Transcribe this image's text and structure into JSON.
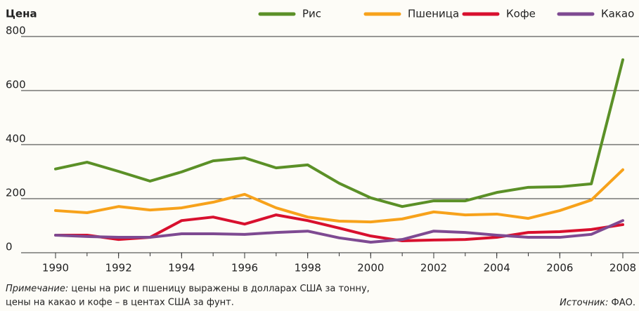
{
  "chart_data": {
    "type": "line",
    "y_label": "Цена",
    "x": [
      1990,
      1991,
      1992,
      1993,
      1994,
      1995,
      1996,
      1997,
      1998,
      1999,
      2000,
      2001,
      2002,
      2003,
      2004,
      2005,
      2006,
      2007,
      2008
    ],
    "series": [
      {
        "name": "Рис",
        "color": "#5b9027",
        "values": [
          310,
          335,
          301,
          265,
          299,
          340,
          351,
          314,
          325,
          257,
          203,
          171,
          192,
          192,
          223,
          242,
          244,
          255,
          714
        ]
      },
      {
        "name": "Пшеница",
        "color": "#f7a21b",
        "values": [
          156,
          148,
          171,
          158,
          166,
          187,
          216,
          166,
          132,
          117,
          114,
          125,
          151,
          140,
          143,
          127,
          156,
          195,
          307
        ]
      },
      {
        "name": "Кофе",
        "color": "#d8102e",
        "values": [
          65,
          65,
          49,
          57,
          119,
          132,
          106,
          140,
          119,
          91,
          62,
          44,
          47,
          49,
          57,
          75,
          78,
          86,
          104
        ]
      },
      {
        "name": "Какао",
        "color": "#7e4a92",
        "values": [
          65,
          60,
          57,
          57,
          70,
          70,
          68,
          75,
          80,
          55,
          39,
          49,
          80,
          75,
          65,
          57,
          57,
          68,
          119
        ]
      }
    ],
    "xlim": [
      1990,
      2008
    ],
    "xticks": [
      1990,
      1992,
      1994,
      1996,
      1998,
      2000,
      2002,
      2004,
      2006,
      2008
    ],
    "ylim": [
      0,
      800
    ],
    "yticks": [
      0,
      200,
      400,
      600,
      800
    ],
    "grid": true,
    "note_label": "Примечание:",
    "note_lines": [
      "цены на рис и пшеницу выражены в долларах США за тонну,",
      "цены на какао и кофе – в центах США за фунт."
    ],
    "source_label": "Источник:",
    "source": "ФАО."
  }
}
